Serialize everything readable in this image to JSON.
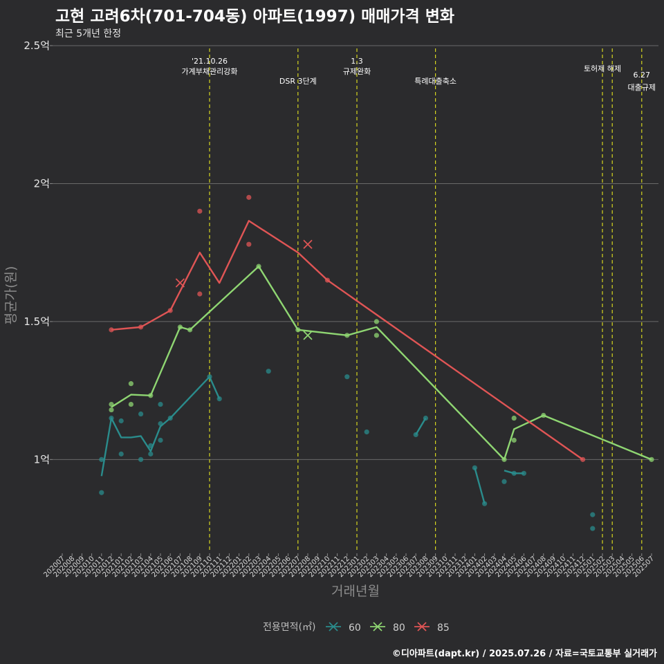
{
  "title": "고현 고려6차(701-704동) 아파트(1997) 매매가격 변화",
  "subtitle": "최근 5개년 한정",
  "caption": "©디아파트(dapt.kr) / 2025.07.26 / 자료=국토교통부 실거래가",
  "chart_data": {
    "type": "line",
    "xlabel": "거래년월",
    "ylabel": "평균가(원)",
    "y_unit": "억",
    "ylim": [
      0.67,
      2.52
    ],
    "yticks": [
      {
        "value": 1.0,
        "label": "1억"
      },
      {
        "value": 1.5,
        "label": "1.5억"
      },
      {
        "value": 2.0,
        "label": "2억"
      },
      {
        "value": 2.5,
        "label": "2.5억"
      }
    ],
    "categories": [
      "202007",
      "202008",
      "202009",
      "202010",
      "202011",
      "202012",
      "202101",
      "202102",
      "202103",
      "202104",
      "202105",
      "202106",
      "202107",
      "202108",
      "202109",
      "202110",
      "202111",
      "202112",
      "202201",
      "202202",
      "202203",
      "202204",
      "202205",
      "202206",
      "202207",
      "202208",
      "202209",
      "202210",
      "202211",
      "202212",
      "202301",
      "202302",
      "202303",
      "202304",
      "202305",
      "202306",
      "202307",
      "202308",
      "202309",
      "202310",
      "202311",
      "202312",
      "202401",
      "202402",
      "202403",
      "202404",
      "202405",
      "202406",
      "202407",
      "202408",
      "202409",
      "202410",
      "202411",
      "202412",
      "202501",
      "202502",
      "202503",
      "202504",
      "202505",
      "202506",
      "202507"
    ],
    "events": [
      {
        "x": "202110",
        "lines": [
          "'21.10.26",
          "가계부채관리강화"
        ]
      },
      {
        "x": "202207",
        "lines": [
          "DSR 3단계"
        ]
      },
      {
        "x": "202301",
        "lines": [
          "1.3",
          "규제완화"
        ]
      },
      {
        "x": "202309",
        "lines": [
          "특례대출축소"
        ]
      },
      {
        "x": "202502",
        "lines": [
          "토허제 해제"
        ]
      },
      {
        "x": "202503",
        "lines": []
      },
      {
        "x": "202506",
        "lines": [
          "6.27",
          "대출규제"
        ]
      }
    ],
    "legend": {
      "title": "전용면적(㎡)",
      "position": "bottom"
    },
    "series": [
      {
        "name": "60",
        "color": "#2a8c8c",
        "lines": [
          {
            "x": [
              "202011",
              "202012",
              "202101",
              "202102",
              "202103",
              "202104",
              "202105",
              "202106",
              "202110",
              "202111"
            ],
            "y": [
              0.94,
              1.15,
              1.08,
              1.08,
              1.085,
              1.03,
              1.12,
              1.15,
              1.3,
              1.22
            ]
          },
          {
            "x": [
              "202307",
              "202308"
            ],
            "y": [
              1.09,
              1.15
            ]
          },
          {
            "x": [
              "202401",
              "202402"
            ],
            "y": [
              0.97,
              0.84
            ]
          },
          {
            "x": [
              "202404",
              "202405",
              "202406"
            ],
            "y": [
              0.96,
              0.95,
              0.95
            ]
          }
        ],
        "points": [
          {
            "x": "202011",
            "y": 1.0
          },
          {
            "x": "202011",
            "y": 0.88
          },
          {
            "x": "202012",
            "y": 1.15
          },
          {
            "x": "202101",
            "y": 1.14
          },
          {
            "x": "202101",
            "y": 1.02
          },
          {
            "x": "202103",
            "y": 1.165
          },
          {
            "x": "202103",
            "y": 1.0
          },
          {
            "x": "202104",
            "y": 1.05
          },
          {
            "x": "202104",
            "y": 1.02
          },
          {
            "x": "202105",
            "y": 1.2
          },
          {
            "x": "202105",
            "y": 1.13
          },
          {
            "x": "202105",
            "y": 1.07
          },
          {
            "x": "202106",
            "y": 1.15
          },
          {
            "x": "202110",
            "y": 1.3
          },
          {
            "x": "202111",
            "y": 1.22
          },
          {
            "x": "202204",
            "y": 1.32
          },
          {
            "x": "202212",
            "y": 1.3
          },
          {
            "x": "202302",
            "y": 1.1
          },
          {
            "x": "202307",
            "y": 1.09
          },
          {
            "x": "202308",
            "y": 1.15
          },
          {
            "x": "202401",
            "y": 0.97
          },
          {
            "x": "202402",
            "y": 0.84
          },
          {
            "x": "202404",
            "y": 0.92
          },
          {
            "x": "202405",
            "y": 0.95
          },
          {
            "x": "202406",
            "y": 0.95
          },
          {
            "x": "202501",
            "y": 0.8
          },
          {
            "x": "202501",
            "y": 0.75
          }
        ],
        "crosses": []
      },
      {
        "name": "80",
        "color": "#8fd672",
        "lines": [
          {
            "x": [
              "202012",
              "202102",
              "202104",
              "202107",
              "202108",
              "202203",
              "202207",
              "202212",
              "202303",
              "202404",
              "202405",
              "202408",
              "202507"
            ],
            "y": [
              1.19,
              1.235,
              1.232,
              1.48,
              1.47,
              1.7,
              1.47,
              1.45,
              1.48,
              1.0,
              1.11,
              1.16,
              1.0
            ]
          }
        ],
        "points": [
          {
            "x": "202012",
            "y": 1.2
          },
          {
            "x": "202012",
            "y": 1.18
          },
          {
            "x": "202102",
            "y": 1.275
          },
          {
            "x": "202102",
            "y": 1.2
          },
          {
            "x": "202104",
            "y": 1.232
          },
          {
            "x": "202107",
            "y": 1.48
          },
          {
            "x": "202108",
            "y": 1.47
          },
          {
            "x": "202203",
            "y": 1.7
          },
          {
            "x": "202207",
            "y": 1.47
          },
          {
            "x": "202212",
            "y": 1.45
          },
          {
            "x": "202303",
            "y": 1.5
          },
          {
            "x": "202303",
            "y": 1.45
          },
          {
            "x": "202404",
            "y": 1.0
          },
          {
            "x": "202405",
            "y": 1.15
          },
          {
            "x": "202405",
            "y": 1.07
          },
          {
            "x": "202408",
            "y": 1.16
          },
          {
            "x": "202507",
            "y": 1.0
          }
        ],
        "crosses": [
          {
            "x": "202208",
            "y": 1.45
          }
        ]
      },
      {
        "name": "85",
        "color": "#e05555",
        "lines": [
          {
            "x": [
              "202012",
              "202103",
              "202106",
              "202109",
              "202111",
              "202202",
              "202207",
              "202210",
              "202412"
            ],
            "y": [
              1.47,
              1.48,
              1.54,
              1.75,
              1.64,
              1.865,
              1.75,
              1.65,
              1.0
            ]
          }
        ],
        "points": [
          {
            "x": "202012",
            "y": 1.47
          },
          {
            "x": "202103",
            "y": 1.48
          },
          {
            "x": "202106",
            "y": 1.54
          },
          {
            "x": "202109",
            "y": 1.9
          },
          {
            "x": "202109",
            "y": 1.6
          },
          {
            "x": "202202",
            "y": 1.95
          },
          {
            "x": "202202",
            "y": 1.78
          },
          {
            "x": "202210",
            "y": 1.65
          },
          {
            "x": "202412",
            "y": 1.0
          }
        ],
        "crosses": [
          {
            "x": "202107",
            "y": 1.64
          },
          {
            "x": "202208",
            "y": 1.78
          }
        ]
      }
    ]
  }
}
